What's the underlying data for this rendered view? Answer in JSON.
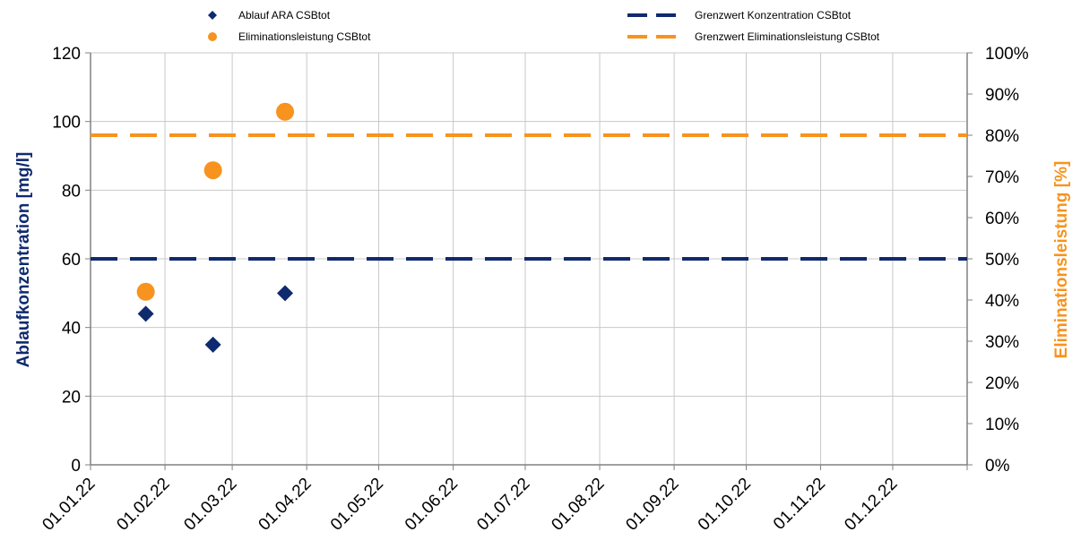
{
  "chart_data": {
    "type": "scatter",
    "x_dates": [
      "01.01.22",
      "01.02.22",
      "01.03.22",
      "01.04.22",
      "01.05.22",
      "01.06.22",
      "01.07.22",
      "01.08.22",
      "01.09.22",
      "01.10.22",
      "01.11.22",
      "01.12.22"
    ],
    "xlim": [
      "01.01.22",
      "31.12.22"
    ],
    "ylabel_left": "Ablaufkonzentration [mg/l]",
    "ylabel_right": "Eliminationsleistung [%]",
    "ylim_left": [
      0,
      120
    ],
    "ylim_right": [
      0,
      1
    ],
    "yticks_left": [
      "0",
      "20",
      "40",
      "60",
      "80",
      "100",
      "120"
    ],
    "yticks_right": [
      "0%",
      "10%",
      "20%",
      "30%",
      "40%",
      "50%",
      "60%",
      "70%",
      "80%",
      "90%",
      "100%"
    ],
    "grid": true,
    "legend_position": "top",
    "series": [
      {
        "name": "Ablauf ARA CSBtot",
        "kind": "marker",
        "marker": "diamond",
        "axis": "left",
        "color": "#0f2a6e",
        "points": [
          {
            "date": "2022-01-24",
            "value": 44
          },
          {
            "date": "2022-02-21",
            "value": 35
          },
          {
            "date": "2022-03-23",
            "value": 50
          }
        ]
      },
      {
        "name": "Eliminationsleistung CSBtot",
        "kind": "marker",
        "marker": "circle",
        "axis": "right",
        "color": "#f7931e",
        "points": [
          {
            "date": "2022-01-24",
            "value": 0.42
          },
          {
            "date": "2022-02-21",
            "value": 0.715
          },
          {
            "date": "2022-03-23",
            "value": 0.857
          }
        ]
      },
      {
        "name": "Grenzwert Konzentration CSBtot",
        "kind": "dashed-line",
        "axis": "left",
        "color": "#0f2a6e",
        "value": 60
      },
      {
        "name": "Grenzwert Eliminationsleistung CSBtot",
        "kind": "dashed-line",
        "axis": "right",
        "color": "#f7931e",
        "value": 0.8
      }
    ]
  },
  "colors": {
    "navy": "#0f2a6e",
    "orange": "#f7931e",
    "grid": "#c8c8c8",
    "axis": "#808080"
  }
}
